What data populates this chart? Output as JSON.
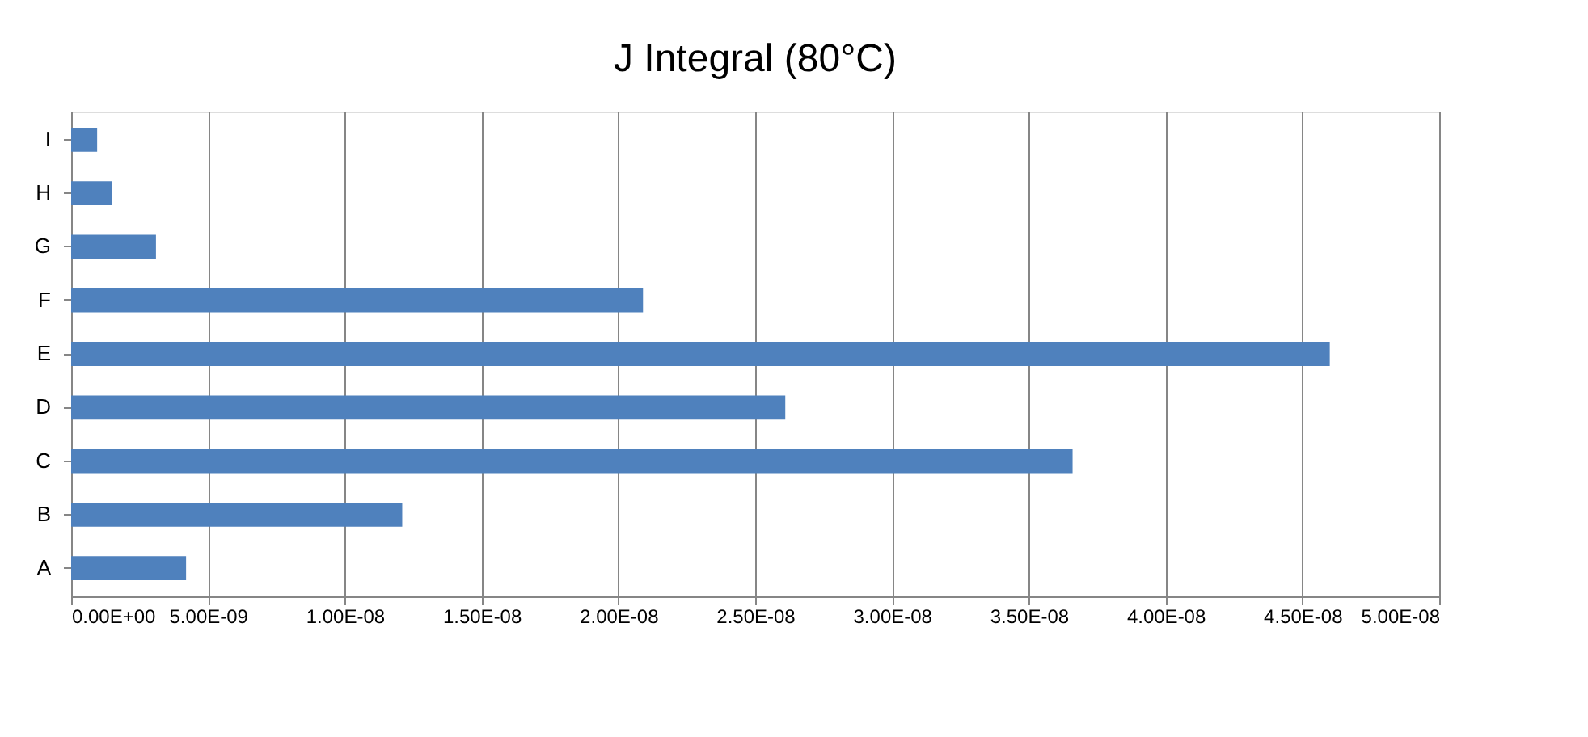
{
  "chart_data": {
    "type": "bar",
    "orientation": "horizontal",
    "title": "J Integral (80°C)",
    "categories": [
      "I",
      "H",
      "G",
      "F",
      "E",
      "D",
      "C",
      "B",
      "A"
    ],
    "values": [
      9.5e-10,
      1.5e-09,
      3.1e-09,
      2.09e-08,
      4.6e-08,
      2.61e-08,
      3.66e-08,
      1.21e-08,
      4.2e-09
    ],
    "color": "#4f81bd",
    "xlim": [
      0,
      5e-08
    ],
    "xticks": [
      {
        "value": 0,
        "label": "0.00E+00"
      },
      {
        "value": 5e-09,
        "label": "5.00E-09"
      },
      {
        "value": 1e-08,
        "label": "1.00E-08"
      },
      {
        "value": 1.5e-08,
        "label": "1.50E-08"
      },
      {
        "value": 2e-08,
        "label": "2.00E-08"
      },
      {
        "value": 2.5e-08,
        "label": "2.50E-08"
      },
      {
        "value": 3e-08,
        "label": "3.00E-08"
      },
      {
        "value": 3.5e-08,
        "label": "3.50E-08"
      },
      {
        "value": 4e-08,
        "label": "4.00E-08"
      },
      {
        "value": 4.5e-08,
        "label": "4.50E-08"
      },
      {
        "value": 5e-08,
        "label": "5.00E-08"
      }
    ],
    "grid": "x"
  }
}
